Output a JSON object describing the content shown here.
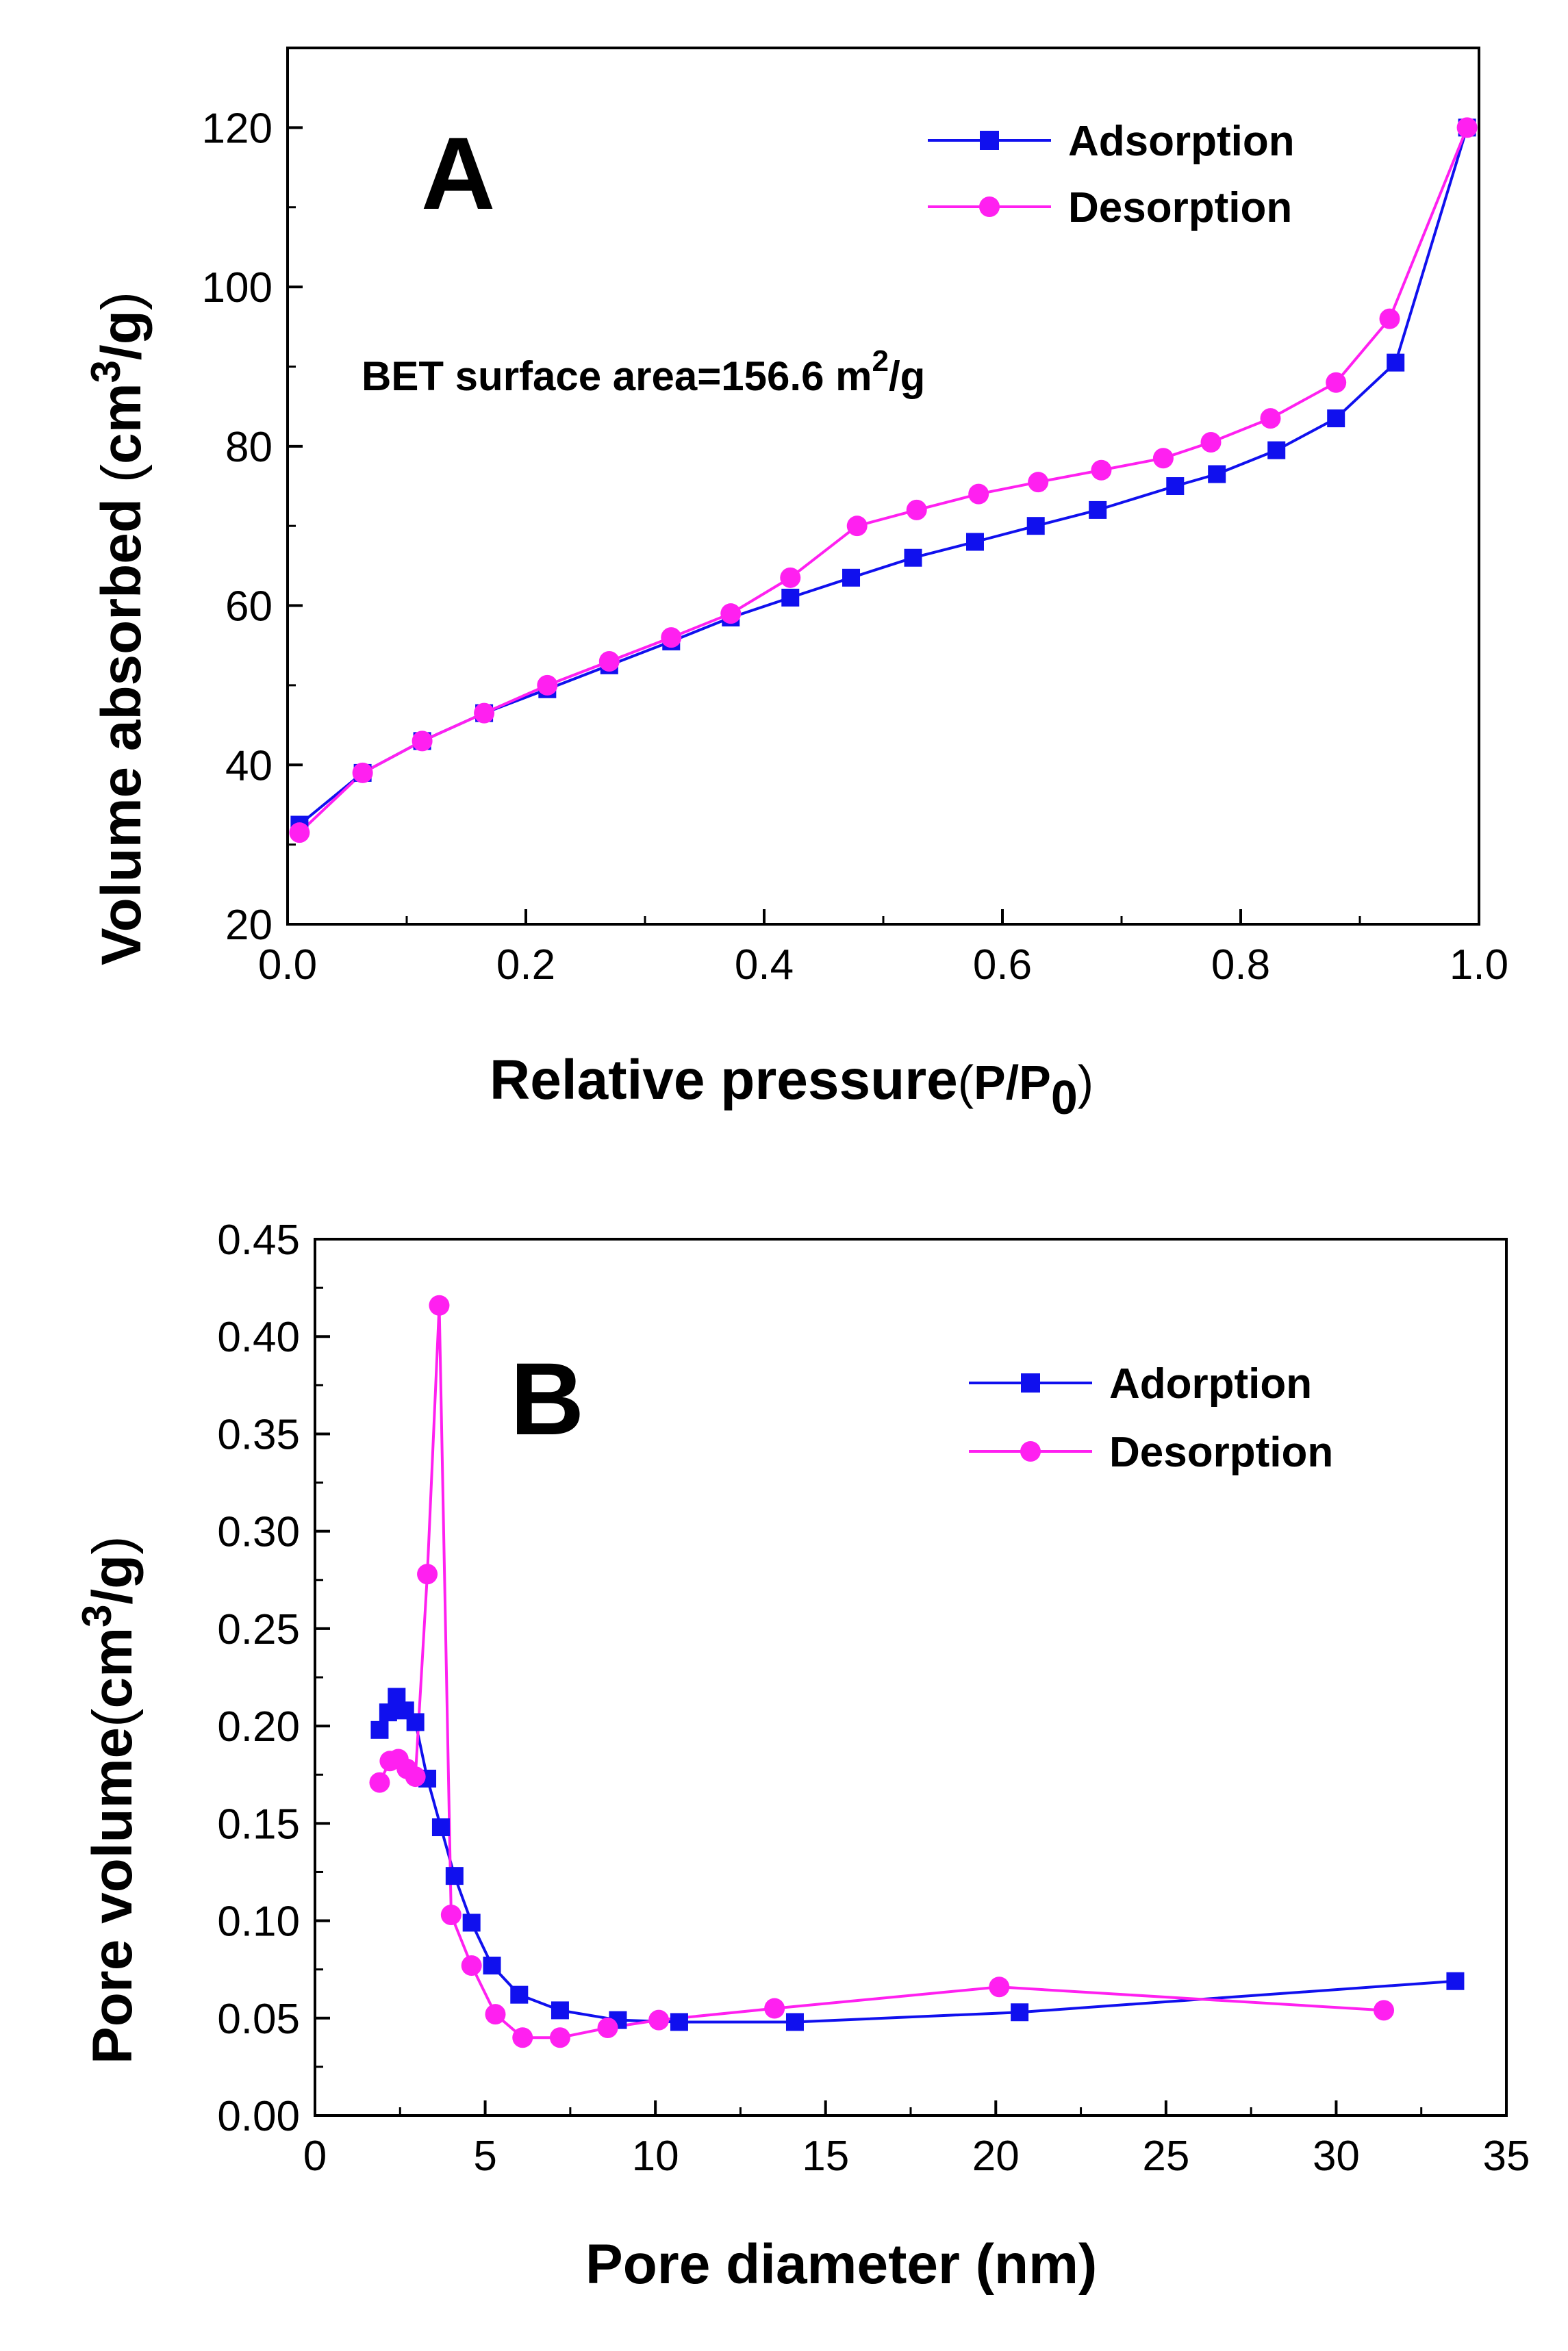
{
  "colors": {
    "adsorption": "#1010ee",
    "desorption": "#ff20f0",
    "axis": "#000000"
  },
  "chart_data": [
    {
      "type": "line",
      "panel_label": "A",
      "annotation": {
        "prefix": "BET surface area=156.6 m",
        "sup": "2",
        "suffix": "/g"
      },
      "xlabel": {
        "main": "Relative pressure",
        "open": "(",
        "p": "P/P",
        "sub": "0",
        "close": ")"
      },
      "ylabel": {
        "main": "Volume absorbed ",
        "open": "(",
        "unit": "cm",
        "sup": "3",
        "suffix": "/g",
        "close": ")"
      },
      "xlim": [
        0,
        1.0
      ],
      "ylim": [
        20,
        130
      ],
      "xticks": [
        "0.0",
        "0.2",
        "0.4",
        "0.6",
        "0.8",
        "1.0"
      ],
      "xtick_values": [
        0,
        0.2,
        0.4,
        0.6,
        0.8,
        1.0
      ],
      "yticks": [
        "20",
        "40",
        "60",
        "80",
        "100",
        "120"
      ],
      "ytick_values": [
        20,
        40,
        60,
        80,
        100,
        120
      ],
      "legend_position": "top-right",
      "series": [
        {
          "name": "Adsorption",
          "marker": "square",
          "color_key": "adsorption",
          "x": [
            0.01,
            0.063,
            0.113,
            0.165,
            0.218,
            0.27,
            0.322,
            0.372,
            0.422,
            0.473,
            0.525,
            0.577,
            0.628,
            0.68,
            0.745,
            0.78,
            0.83,
            0.88,
            0.93,
            0.99
          ],
          "y": [
            32.5,
            39.0,
            43.0,
            46.5,
            49.5,
            52.5,
            55.5,
            58.5,
            61.0,
            63.5,
            66.0,
            68.0,
            70.0,
            72.0,
            75.0,
            76.5,
            79.5,
            83.5,
            90.5,
            120.0
          ]
        },
        {
          "name": "Desorption",
          "marker": "circle",
          "color_key": "desorption",
          "x": [
            0.01,
            0.063,
            0.113,
            0.165,
            0.218,
            0.27,
            0.322,
            0.372,
            0.422,
            0.478,
            0.528,
            0.58,
            0.63,
            0.683,
            0.735,
            0.775,
            0.825,
            0.88,
            0.925,
            0.99
          ],
          "y": [
            31.5,
            39.0,
            43.0,
            46.5,
            50.0,
            53.0,
            56.0,
            59.0,
            63.5,
            70.0,
            72.0,
            74.0,
            75.5,
            77.0,
            78.5,
            80.5,
            83.5,
            88.0,
            96.0,
            120.0
          ]
        }
      ]
    },
    {
      "type": "line",
      "panel_label": "B",
      "xlabel": {
        "main": "Pore diameter (nm)"
      },
      "ylabel": {
        "main": "Pore volume",
        "open": "(",
        "unit": "cm",
        "sup": "3",
        "suffix": "/g",
        "close": ")"
      },
      "xlim": [
        0,
        35
      ],
      "ylim": [
        0,
        0.45
      ],
      "xticks": [
        "0",
        "5",
        "10",
        "15",
        "20",
        "25",
        "30",
        "35"
      ],
      "xtick_values": [
        0,
        5,
        10,
        15,
        20,
        25,
        30,
        35
      ],
      "yticks": [
        "0.00",
        "0.05",
        "0.10",
        "0.15",
        "0.20",
        "0.25",
        "0.30",
        "0.35",
        "0.40",
        "0.45"
      ],
      "ytick_values": [
        0,
        0.05,
        0.1,
        0.15,
        0.2,
        0.25,
        0.3,
        0.35,
        0.4,
        0.45
      ],
      "legend_position": "top-right",
      "series": [
        {
          "name": "Adorption",
          "marker": "square",
          "color_key": "adsorption",
          "x": [
            1.9,
            2.15,
            2.4,
            2.65,
            2.95,
            3.3,
            3.7,
            4.1,
            4.6,
            5.2,
            6.0,
            7.2,
            8.9,
            10.7,
            14.1,
            20.7,
            33.5
          ],
          "y": [
            0.198,
            0.207,
            0.215,
            0.208,
            0.202,
            0.173,
            0.148,
            0.123,
            0.099,
            0.077,
            0.062,
            0.054,
            0.049,
            0.048,
            0.048,
            0.053,
            0.069
          ]
        },
        {
          "name": "Desorption",
          "marker": "circle",
          "color_key": "desorption",
          "x": [
            1.9,
            2.2,
            2.45,
            2.7,
            2.95,
            3.3,
            3.65,
            4.0,
            4.6,
            5.3,
            6.1,
            7.2,
            8.6,
            10.1,
            13.5,
            20.1,
            31.4
          ],
          "y": [
            0.171,
            0.182,
            0.183,
            0.178,
            0.174,
            0.278,
            0.416,
            0.103,
            0.077,
            0.052,
            0.04,
            0.04,
            0.045,
            0.049,
            0.055,
            0.066,
            0.054
          ]
        }
      ]
    }
  ]
}
